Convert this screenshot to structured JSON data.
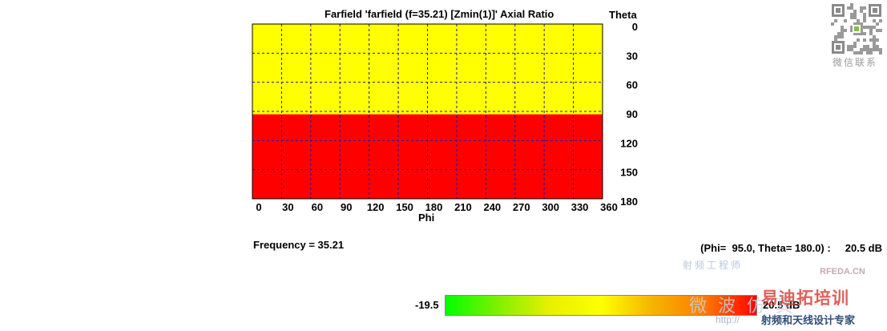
{
  "chart_data": {
    "type": "heatmap",
    "title": "Farfield 'farfield (f=35.21) [Zmin(1)]' Axial Ratio",
    "xlabel": "Phi",
    "ylabel": "Theta",
    "x_ticks": [
      "0",
      "30",
      "60",
      "90",
      "120",
      "150",
      "180",
      "210",
      "240",
      "270",
      "300",
      "330",
      "360"
    ],
    "y_ticks": [
      "0",
      "30",
      "60",
      "90",
      "120",
      "150",
      "180"
    ],
    "xlim": [
      0,
      360
    ],
    "ylim": [
      0,
      180
    ],
    "grid": true,
    "regions": [
      {
        "theta_range": [
          0,
          93
        ],
        "phi_range": [
          0,
          360
        ],
        "color": "#ffff00"
      },
      {
        "theta_range": [
          93,
          180
        ],
        "phi_range": [
          0,
          360
        ],
        "color": "#ff0000"
      }
    ],
    "colorbar": {
      "min_label": "-19.5",
      "max_label": "20.5 dB",
      "colors": [
        "#00ff00",
        "#7ff000",
        "#e6f000",
        "#ffff00",
        "#f5b400",
        "#ff7a00",
        "#ff0000"
      ]
    }
  },
  "info": {
    "frequency": "Frequency  = 35.21",
    "readout": "(Phi=  95.0, Theta= 180.0) :     20.5 dB"
  },
  "colors": {
    "grid_line": "#1a1aa0",
    "frame": "#000000"
  },
  "watermark": {
    "qr_caption": "微信联系",
    "site": "RFEDA.CN",
    "brand": "易迪拓培训",
    "tagline": "射频和天线设计专家",
    "url": "http://",
    "left_text": "射频工程师",
    "left_text2": "微波仿真"
  }
}
